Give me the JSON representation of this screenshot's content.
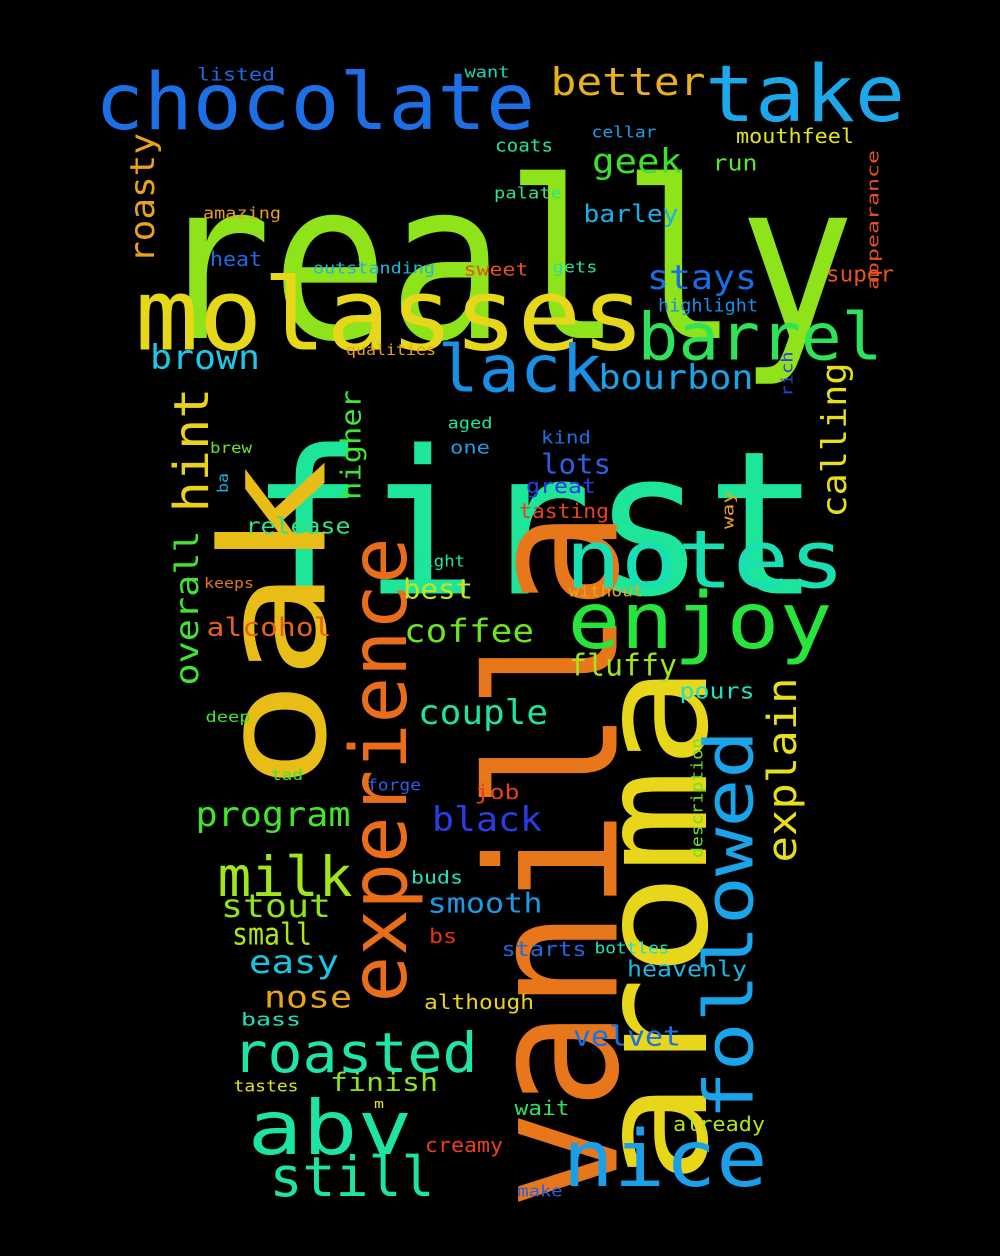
{
  "word_cloud": {
    "background": "#000000",
    "words": [
      {
        "text": "really",
        "color": "#8fe31a"
      },
      {
        "text": "first",
        "color": "#1de59a"
      },
      {
        "text": "vanilla",
        "color": "#e8761b"
      },
      {
        "text": "aroma",
        "color": "#e8d61a"
      },
      {
        "text": "oak",
        "color": "#e8bd18"
      },
      {
        "text": "molasses",
        "color": "#e6d71b"
      },
      {
        "text": "chocolate",
        "color": "#1d6fe6"
      },
      {
        "text": "experience",
        "color": "#e96d1b"
      },
      {
        "text": "notes",
        "color": "#19e0b2"
      },
      {
        "text": "followed",
        "color": "#1aa4e9"
      },
      {
        "text": "enjoy",
        "color": "#26e53b"
      },
      {
        "text": "take",
        "color": "#1ca8ea"
      },
      {
        "text": "nice",
        "color": "#1b9fe8"
      },
      {
        "text": "abv",
        "color": "#1de4a4"
      },
      {
        "text": "barrel",
        "color": "#2ee35a"
      },
      {
        "text": "roasted",
        "color": "#1fe6a8"
      },
      {
        "text": "lack",
        "color": "#1a8fe6"
      },
      {
        "text": "still",
        "color": "#1de4a4"
      },
      {
        "text": "milk",
        "color": "#a3e51c"
      },
      {
        "text": "better",
        "color": "#e8b01b"
      },
      {
        "text": "hint",
        "color": "#e8d31a"
      },
      {
        "text": "explain",
        "color": "#e8df1b"
      },
      {
        "text": "bourbon",
        "color": "#1aa3e8"
      },
      {
        "text": "stays",
        "color": "#1b6de6"
      },
      {
        "text": "brown",
        "color": "#1ec9e8"
      },
      {
        "text": "geek",
        "color": "#3ae32b"
      },
      {
        "text": "roasty",
        "color": "#e8a31b"
      },
      {
        "text": "calling",
        "color": "#e8df1b"
      },
      {
        "text": "overall",
        "color": "#3fe531"
      },
      {
        "text": "program",
        "color": "#43e42a"
      },
      {
        "text": "black",
        "color": "#2b3ce6"
      },
      {
        "text": "couple",
        "color": "#1de59a"
      },
      {
        "text": "coffee",
        "color": "#6be321"
      },
      {
        "text": "stout",
        "color": "#8fe31a"
      },
      {
        "text": "fluffy",
        "color": "#a3e51c"
      },
      {
        "text": "small",
        "color": "#b0e41b"
      },
      {
        "text": "easy",
        "color": "#1ac4e4"
      },
      {
        "text": "smooth",
        "color": "#1c98e6"
      },
      {
        "text": "nose",
        "color": "#e8a51b"
      },
      {
        "text": "lots",
        "color": "#2b5fe6"
      },
      {
        "text": "higher",
        "color": "#3fe531"
      },
      {
        "text": "alcohol",
        "color": "#e6611b"
      },
      {
        "text": "best",
        "color": "#c6e41b"
      },
      {
        "text": "velvet",
        "color": "#1b6fe6"
      },
      {
        "text": "finish",
        "color": "#8fe31a"
      },
      {
        "text": "heavenly",
        "color": "#1bb8e6"
      },
      {
        "text": "pours",
        "color": "#1ce4c0"
      },
      {
        "text": "barley",
        "color": "#1ab0e6"
      },
      {
        "text": "mouthfeel",
        "color": "#dfe41b"
      },
      {
        "text": "release",
        "color": "#2ee38c"
      },
      {
        "text": "run",
        "color": "#5fe42a"
      },
      {
        "text": "super",
        "color": "#e6541b"
      },
      {
        "text": "listed",
        "color": "#1b6be6"
      },
      {
        "text": "want",
        "color": "#1bd6b4"
      },
      {
        "text": "cellar",
        "color": "#1ba0e6"
      },
      {
        "text": "coats",
        "color": "#1de4a4"
      },
      {
        "text": "palate",
        "color": "#2ee38c"
      },
      {
        "text": "amazing",
        "color": "#e8a01b"
      },
      {
        "text": "heat",
        "color": "#1b6be6"
      },
      {
        "text": "outstanding",
        "color": "#1ab8e0"
      },
      {
        "text": "sweet",
        "color": "#e8511b"
      },
      {
        "text": "gets",
        "color": "#1de4a4"
      },
      {
        "text": "highlight",
        "color": "#1b8fe6"
      },
      {
        "text": "appearance",
        "color": "#e8511b"
      },
      {
        "text": "qualities",
        "color": "#e8a01b"
      },
      {
        "text": "rich",
        "color": "#2b3ce6"
      },
      {
        "text": "aged",
        "color": "#1de4a4"
      },
      {
        "text": "kind",
        "color": "#1b6fe6"
      },
      {
        "text": "one",
        "color": "#1b9fe8"
      },
      {
        "text": "great",
        "color": "#2b3ce6"
      },
      {
        "text": "brew",
        "color": "#6be321"
      },
      {
        "text": "ba",
        "color": "#1ab0e6"
      },
      {
        "text": "tasting",
        "color": "#e8411b"
      },
      {
        "text": "way",
        "color": "#e8a51b"
      },
      {
        "text": "light",
        "color": "#1de4a4"
      },
      {
        "text": "keeps",
        "color": "#e8761b"
      },
      {
        "text": "without",
        "color": "#e8a51b"
      },
      {
        "text": "deep",
        "color": "#3fe531"
      },
      {
        "text": "description",
        "color": "#6be321"
      },
      {
        "text": "tad",
        "color": "#3fe531"
      },
      {
        "text": "forge",
        "color": "#2b5fe6"
      },
      {
        "text": "job",
        "color": "#e8411b"
      },
      {
        "text": "buds",
        "color": "#1ce4c0"
      },
      {
        "text": "bs",
        "color": "#e8311b"
      },
      {
        "text": "starts",
        "color": "#1b6be6"
      },
      {
        "text": "bottles",
        "color": "#1ce4c0"
      },
      {
        "text": "although",
        "color": "#e8d61a"
      },
      {
        "text": "bass",
        "color": "#1ce4c0"
      },
      {
        "text": "tastes",
        "color": "#dfe41b"
      },
      {
        "text": "m",
        "color": "#dfe41b"
      },
      {
        "text": "wait",
        "color": "#2ee35a"
      },
      {
        "text": "already",
        "color": "#b0e41b"
      },
      {
        "text": "creamy",
        "color": "#e8411b"
      },
      {
        "text": "make",
        "color": "#2b5fe6"
      }
    ]
  }
}
